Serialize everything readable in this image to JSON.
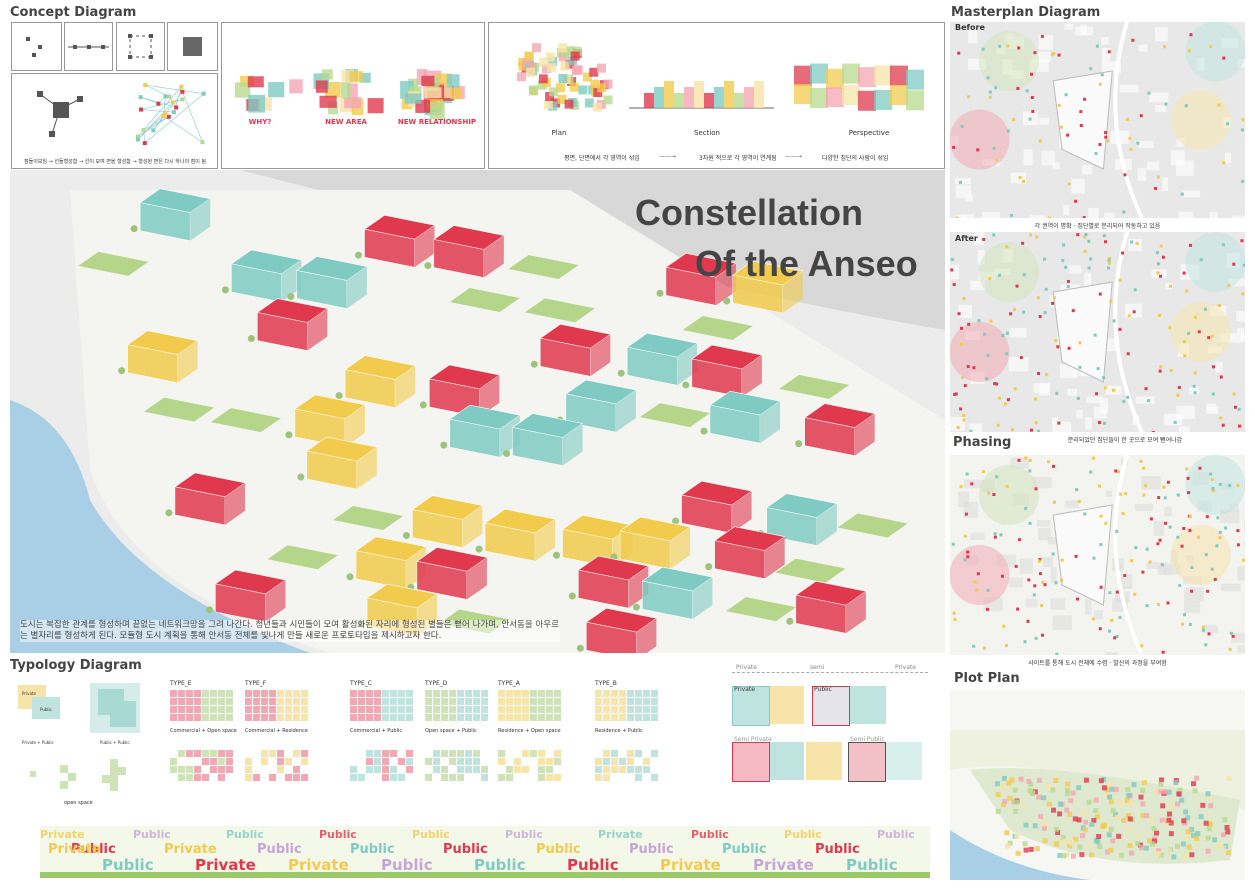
{
  "concept": {
    "title": "Concept Diagram",
    "caption": "점들이모임 → 선들형성함 → 선이 모여 면을 형성함 → 형성된 면은 다시 하나의 점이 됨",
    "steps": [
      "WHY?",
      "NEW AREA",
      "NEW RELATIONSHIP"
    ],
    "views": [
      "Plan",
      "Section",
      "Perspective"
    ],
    "notes": [
      "평면, 단면에서 각 영역이 섞임",
      "3차원 적으로 각 영역이 연계됨",
      "다양한 집단의 사람이 섞임"
    ]
  },
  "hero": {
    "title_line1": "Constellation",
    "title_line2": "Of the Anseo",
    "text": "도시는 복잡한 관계를 형성하며 끝없는 네트워크망을 그려 나간다. 청년들과 시민들이 모여 활성화된 자리에 형성된 별들은 뻗어 나가며, 안서동을 아우르는 별자리를 형성하게 된다. 모듈형 도시 계획을 통해 안서동 전체를 빛나게 만들 새로운 프로토타입을 제시하고자 한다."
  },
  "typology": {
    "title": "Typology Diagram",
    "legend": [
      "Private",
      "Public",
      "Private + Public",
      "Public + Public",
      "open space"
    ],
    "types": [
      {
        "name": "TYPE_E",
        "desc": "Commercial + Open space"
      },
      {
        "name": "TYPE_F",
        "desc": "Commercial + Residence"
      },
      {
        "name": "TYPE_C",
        "desc": "Commercial + Public"
      },
      {
        "name": "TYPE_D",
        "desc": "Open space + Public"
      },
      {
        "name": "TYPE_A",
        "desc": "Residence + Open space"
      },
      {
        "name": "TYPE_B",
        "desc": "Residence + Public"
      }
    ],
    "scale": [
      "Private",
      "semi",
      "Private"
    ],
    "zones": [
      "Private",
      "Public",
      "Semi Private",
      "Semi Public"
    ]
  },
  "strip": {
    "words": [
      "Private",
      "Public",
      "Public",
      "Public",
      "Private",
      "Private",
      "Public",
      "Public",
      "Private",
      "Public",
      "Public",
      "Public",
      "Public",
      "Public",
      "Public",
      "Public",
      "Public",
      "Public",
      "Private",
      "Public",
      "Private",
      "Public",
      "Public",
      "Private",
      "Public",
      "Public",
      "Public",
      "Public",
      "Private"
    ]
  },
  "masterplan": {
    "title": "Masterplan Diagram",
    "before": "Before",
    "before_caption": "각 권역이 명확 · 집단별로 분리되어 작동하고 있음",
    "after": "After",
    "after_caption": "분리되었던 집단들이 한 곳으로 모여 뻗어나감"
  },
  "phasing": {
    "title": "Phasing",
    "caption": "사이트를 통해 도시 전체에 수렴 · 발산의 과정을 부여함"
  },
  "plot": {
    "title": "Plot Plan"
  }
}
